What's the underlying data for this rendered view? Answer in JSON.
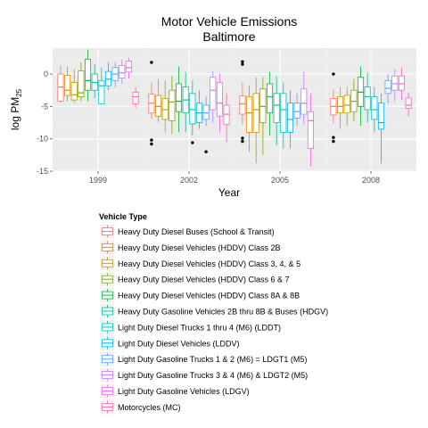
{
  "chart_data": {
    "type": "box",
    "title": "Motor Vehicle Emissions",
    "subtitle": "Baltimore",
    "xlabel": "Year",
    "ylabel_main": "log PM",
    "ylabel_sub": "25",
    "ylim": [
      -15,
      4
    ],
    "yticks": [
      0,
      -5,
      -10,
      -15
    ],
    "categories": [
      "1999",
      "2002",
      "2005",
      "2008"
    ],
    "grid": true,
    "panel_background": "#ebebeb",
    "legend": {
      "title": "Vehicle Type",
      "placement": "bottom"
    },
    "series": [
      {
        "name": "Heavy Duty Diesel Buses (School & Transit)",
        "color": "#F8766D",
        "boxes": [
          {
            "q1": -4.2,
            "median": -2.0,
            "q3": 0.0,
            "lower": -4.4,
            "upper": 1.3,
            "outliers": []
          },
          {
            "q1": -6.0,
            "median": -4.5,
            "q3": -3.1,
            "lower": -6.9,
            "upper": -1.3,
            "outliers": [
              1.8,
              -10.2,
              -10.8
            ]
          },
          {
            "q1": -6.2,
            "median": -4.6,
            "q3": -3.4,
            "lower": -7.7,
            "upper": -1.3,
            "outliers": [
              1.5,
              1.9,
              -9.9,
              -10.4
            ]
          },
          {
            "q1": -6.3,
            "median": -5.0,
            "q3": -3.8,
            "lower": -7.6,
            "upper": -2.4,
            "outliers": [
              0.0,
              -9.8,
              -10.4
            ]
          }
        ]
      },
      {
        "name": "Heavy Duty Diesel Vehicles (HDDV) Class 2B",
        "color": "#DE8C00",
        "boxes": [
          {
            "q1": -3.3,
            "median": -2.5,
            "q3": -0.2,
            "lower": -4.2,
            "upper": 1.2,
            "outliers": []
          },
          {
            "q1": -6.5,
            "median": -5.0,
            "q3": -3.3,
            "lower": -7.5,
            "upper": -0.8,
            "outliers": []
          },
          {
            "q1": -9.0,
            "median": -6.0,
            "q3": -3.5,
            "lower": -12.0,
            "upper": -1.8,
            "outliers": []
          },
          {
            "q1": -6.0,
            "median": -5.0,
            "q3": -3.5,
            "lower": -8.5,
            "upper": -2.0,
            "outliers": []
          }
        ]
      },
      {
        "name": "Heavy Duty Diesel Vehicles (HDDV) Class 3, 4, & 5",
        "color": "#B79F00",
        "boxes": [
          {
            "q1": -4.0,
            "median": -3.2,
            "q3": -1.3,
            "lower": -4.5,
            "upper": 0.8,
            "outliers": []
          },
          {
            "q1": -7.0,
            "median": -5.5,
            "q3": -3.8,
            "lower": -9.0,
            "upper": -1.0,
            "outliers": []
          },
          {
            "q1": -9.0,
            "median": -5.5,
            "q3": -3.0,
            "lower": -13.8,
            "upper": -0.5,
            "outliers": []
          },
          {
            "q1": -6.0,
            "median": -4.8,
            "q3": -3.3,
            "lower": -8.0,
            "upper": -2.0,
            "outliers": []
          }
        ]
      },
      {
        "name": "Heavy Duty Diesel Vehicles (HDDV) Class 6 & 7",
        "color": "#7CAE00",
        "boxes": [
          {
            "q1": -3.5,
            "median": -2.9,
            "q3": 0.5,
            "lower": -4.2,
            "upper": 1.8,
            "outliers": []
          },
          {
            "q1": -7.2,
            "median": -4.3,
            "q3": -2.5,
            "lower": -9.3,
            "upper": -0.3,
            "outliers": []
          },
          {
            "q1": -7.5,
            "median": -5.0,
            "q3": -2.3,
            "lower": -12.5,
            "upper": -0.5,
            "outliers": []
          },
          {
            "q1": -5.8,
            "median": -4.2,
            "q3": -2.5,
            "lower": -7.3,
            "upper": -0.8,
            "outliers": []
          }
        ]
      },
      {
        "name": "Heavy Duty Diesel Vehicles (HDDV) Class 8A & 8B",
        "color": "#00BA38",
        "boxes": [
          {
            "q1": -2.5,
            "median": -1.0,
            "q3": 2.3,
            "lower": -4.2,
            "upper": 3.8,
            "outliers": []
          },
          {
            "q1": -5.8,
            "median": -4.2,
            "q3": -1.5,
            "lower": -9.0,
            "upper": 1.2,
            "outliers": []
          },
          {
            "q1": -6.0,
            "median": -3.5,
            "q3": -1.5,
            "lower": -9.5,
            "upper": 0.3,
            "outliers": []
          },
          {
            "q1": -5.0,
            "median": -2.8,
            "q3": -0.5,
            "lower": -8.0,
            "upper": 1.2,
            "outliers": []
          }
        ]
      },
      {
        "name": "Heavy Duty Gasoline Vehicles 2B thru 8B & Buses (HDGV)",
        "color": "#00C08B",
        "boxes": [
          {
            "q1": -2.5,
            "median": -1.3,
            "q3": 0.0,
            "lower": -3.7,
            "upper": 1.5,
            "outliers": []
          },
          {
            "q1": -6.0,
            "median": -4.0,
            "q3": -2.0,
            "lower": -9.0,
            "upper": 0.3,
            "outliers": []
          },
          {
            "q1": -7.5,
            "median": -4.8,
            "q3": -3.0,
            "lower": -11.0,
            "upper": -0.3,
            "outliers": []
          },
          {
            "q1": -5.5,
            "median": -3.5,
            "q3": -2.0,
            "lower": -7.5,
            "upper": 0.2,
            "outliers": []
          }
        ]
      },
      {
        "name": "Light Duty Diesel Trucks 1 thru 4 (M6) (LDDT)",
        "color": "#00BFC4",
        "boxes": [
          {
            "q1": -4.6,
            "median": -1.8,
            "q3": -1.0,
            "lower": -4.6,
            "upper": 1.0,
            "outliers": []
          },
          {
            "q1": -7.7,
            "median": -5.5,
            "q3": -3.0,
            "lower": -9.5,
            "upper": -1.0,
            "outliers": [
              -10.6
            ]
          },
          {
            "q1": -9.0,
            "median": -5.5,
            "q3": -3.0,
            "lower": -11.5,
            "upper": -1.3,
            "outliers": []
          },
          {
            "q1": -7.0,
            "median": -5.5,
            "q3": -3.5,
            "lower": -9.0,
            "upper": -2.0,
            "outliers": []
          }
        ]
      },
      {
        "name": "Light Duty Diesel Vehicles (LDDV)",
        "color": "#00B4EF",
        "boxes": [
          {
            "q1": -1.8,
            "median": -0.8,
            "q3": 0.4,
            "lower": -2.5,
            "upper": 1.8,
            "outliers": []
          },
          {
            "q1": -7.5,
            "median": -6.0,
            "q3": -4.5,
            "lower": -8.5,
            "upper": -2.5,
            "outliers": []
          },
          {
            "q1": -9.0,
            "median": -7.0,
            "q3": -4.5,
            "lower": -11.5,
            "upper": -2.5,
            "outliers": []
          },
          {
            "q1": -8.5,
            "median": -7.5,
            "q3": -4.5,
            "lower": -13.8,
            "upper": -3.0,
            "outliers": []
          }
        ]
      },
      {
        "name": "Light Duty Gasoline Trucks 1 & 2 (M6) = LDGT1 (M5)",
        "color": "#619CFF",
        "boxes": [
          {
            "q1": -1.0,
            "median": 0.0,
            "q3": 1.0,
            "lower": -2.0,
            "upper": 1.8,
            "outliers": []
          },
          {
            "q1": -7.0,
            "median": -6.0,
            "q3": -4.8,
            "lower": -8.0,
            "upper": -3.5,
            "outliers": [
              -12.0
            ]
          },
          {
            "q1": -6.8,
            "median": -5.8,
            "q3": -4.5,
            "lower": -8.0,
            "upper": -3.0,
            "outliers": []
          },
          {
            "q1": -3.0,
            "median": -2.2,
            "q3": -1.0,
            "lower": -4.5,
            "upper": 0.0,
            "outliers": []
          }
        ]
      },
      {
        "name": "Light Duty Gasoline Trucks 3 & 4 (M6) & LDGT2 (M5)",
        "color": "#C77CFF",
        "boxes": [
          {
            "q1": -0.6,
            "median": 0.2,
            "q3": 1.3,
            "lower": -1.5,
            "upper": 2.2,
            "outliers": []
          },
          {
            "q1": -5.5,
            "median": -2.5,
            "q3": -0.5,
            "lower": -7.5,
            "upper": 0.5,
            "outliers": []
          },
          {
            "q1": -6.2,
            "median": -4.5,
            "q3": -2.3,
            "lower": -7.8,
            "upper": 0.3,
            "outliers": []
          },
          {
            "q1": -2.5,
            "median": -1.5,
            "q3": -0.3,
            "lower": -4.2,
            "upper": 0.8,
            "outliers": []
          }
        ]
      },
      {
        "name": "Light Duty Gasoline Vehicles (LDGV)",
        "color": "#F564E3",
        "boxes": [
          {
            "q1": 0.3,
            "median": 1.0,
            "q3": 2.0,
            "lower": -0.7,
            "upper": 2.5,
            "outliers": []
          },
          {
            "q1": -6.5,
            "median": -4.5,
            "q3": -1.3,
            "lower": -9.0,
            "upper": 0.0,
            "outliers": []
          },
          {
            "q1": -11.5,
            "median": -7.2,
            "q3": -5.8,
            "lower": -14.3,
            "upper": -3.0,
            "outliers": []
          },
          {
            "q1": -2.5,
            "median": -1.5,
            "q3": -0.3,
            "lower": -4.0,
            "upper": 1.0,
            "outliers": []
          }
        ]
      },
      {
        "name": "Motorcycles (MC)",
        "color": "#FF64B0",
        "boxes": [
          {
            "q1": -4.6,
            "median": -3.5,
            "q3": -2.8,
            "lower": -5.3,
            "upper": -2.0,
            "outliers": []
          },
          {
            "q1": -7.8,
            "median": -6.2,
            "q3": -4.8,
            "lower": -10.5,
            "upper": -3.0,
            "outliers": []
          },
          null,
          {
            "q1": -5.3,
            "median": -4.8,
            "q3": -3.7,
            "lower": -6.5,
            "upper": -2.8,
            "outliers": []
          }
        ]
      }
    ]
  }
}
